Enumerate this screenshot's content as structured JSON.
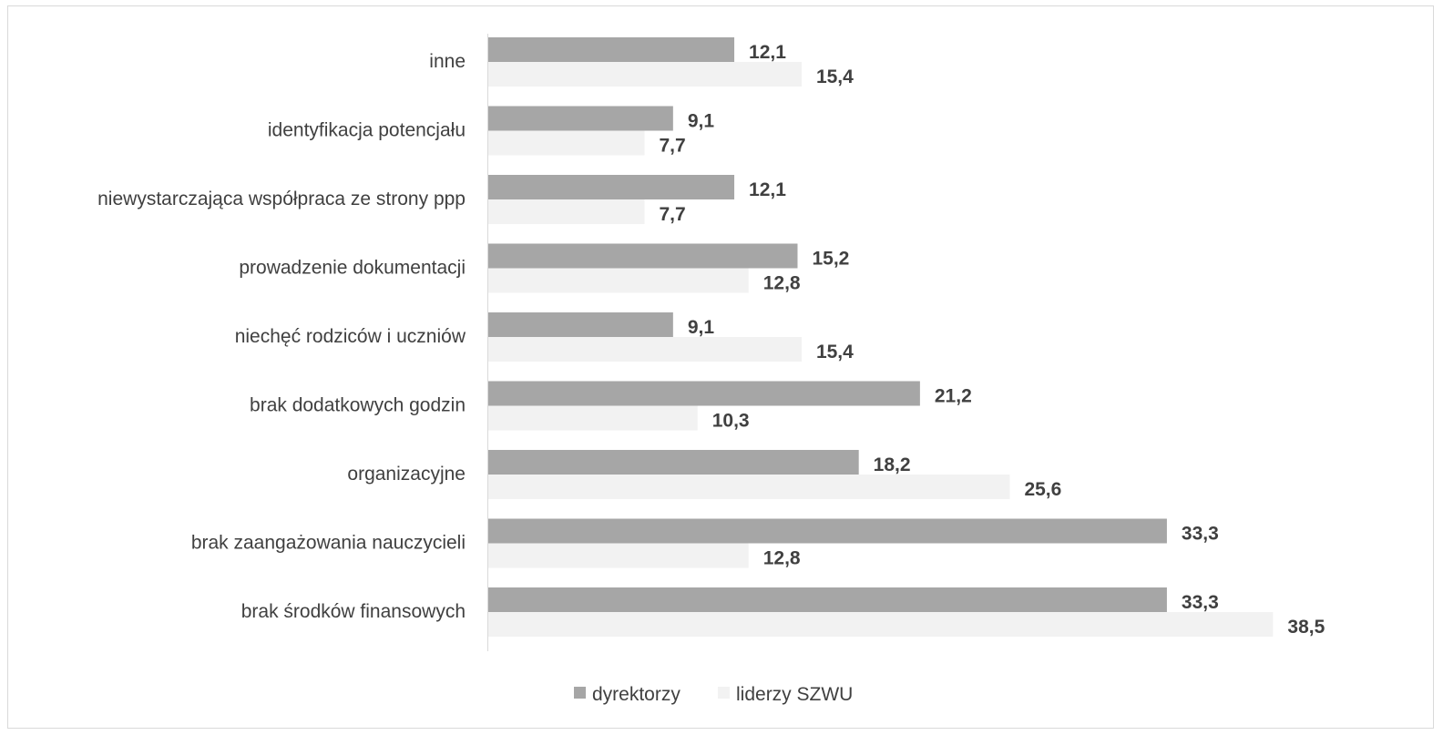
{
  "chart_data": {
    "type": "bar",
    "orientation": "horizontal",
    "categories": [
      "inne",
      "identyfikacja potencjału",
      "niewystarczająca współpraca ze strony ppp",
      "prowadzenie dokumentacji",
      "niechęć rodziców i uczniów",
      "brak dodatkowych godzin",
      "organizacyjne",
      "brak zaangażowania nauczycieli",
      "brak środków finansowych"
    ],
    "series": [
      {
        "name": "dyrektorzy",
        "color": "#a6a6a6",
        "values": [
          12.1,
          9.1,
          12.1,
          15.2,
          9.1,
          21.2,
          18.2,
          33.3,
          33.3
        ],
        "labels": [
          "12,1",
          "9,1",
          "12,1",
          "15,2",
          "9,1",
          "21,2",
          "18,2",
          "33,3",
          "33,3"
        ]
      },
      {
        "name": "liderzy SZWU",
        "color": "#f2f2f2",
        "values": [
          15.4,
          7.7,
          7.7,
          12.8,
          15.4,
          10.3,
          25.6,
          12.8,
          38.5
        ],
        "labels": [
          "15,4",
          "7,7",
          "7,7",
          "12,8",
          "15,4",
          "10,3",
          "25,6",
          "12,8",
          "38,5"
        ]
      }
    ],
    "xlim": [
      0,
      40
    ],
    "grid": false,
    "legend_position": "bottom",
    "title": "",
    "xlabel": "",
    "ylabel": ""
  }
}
